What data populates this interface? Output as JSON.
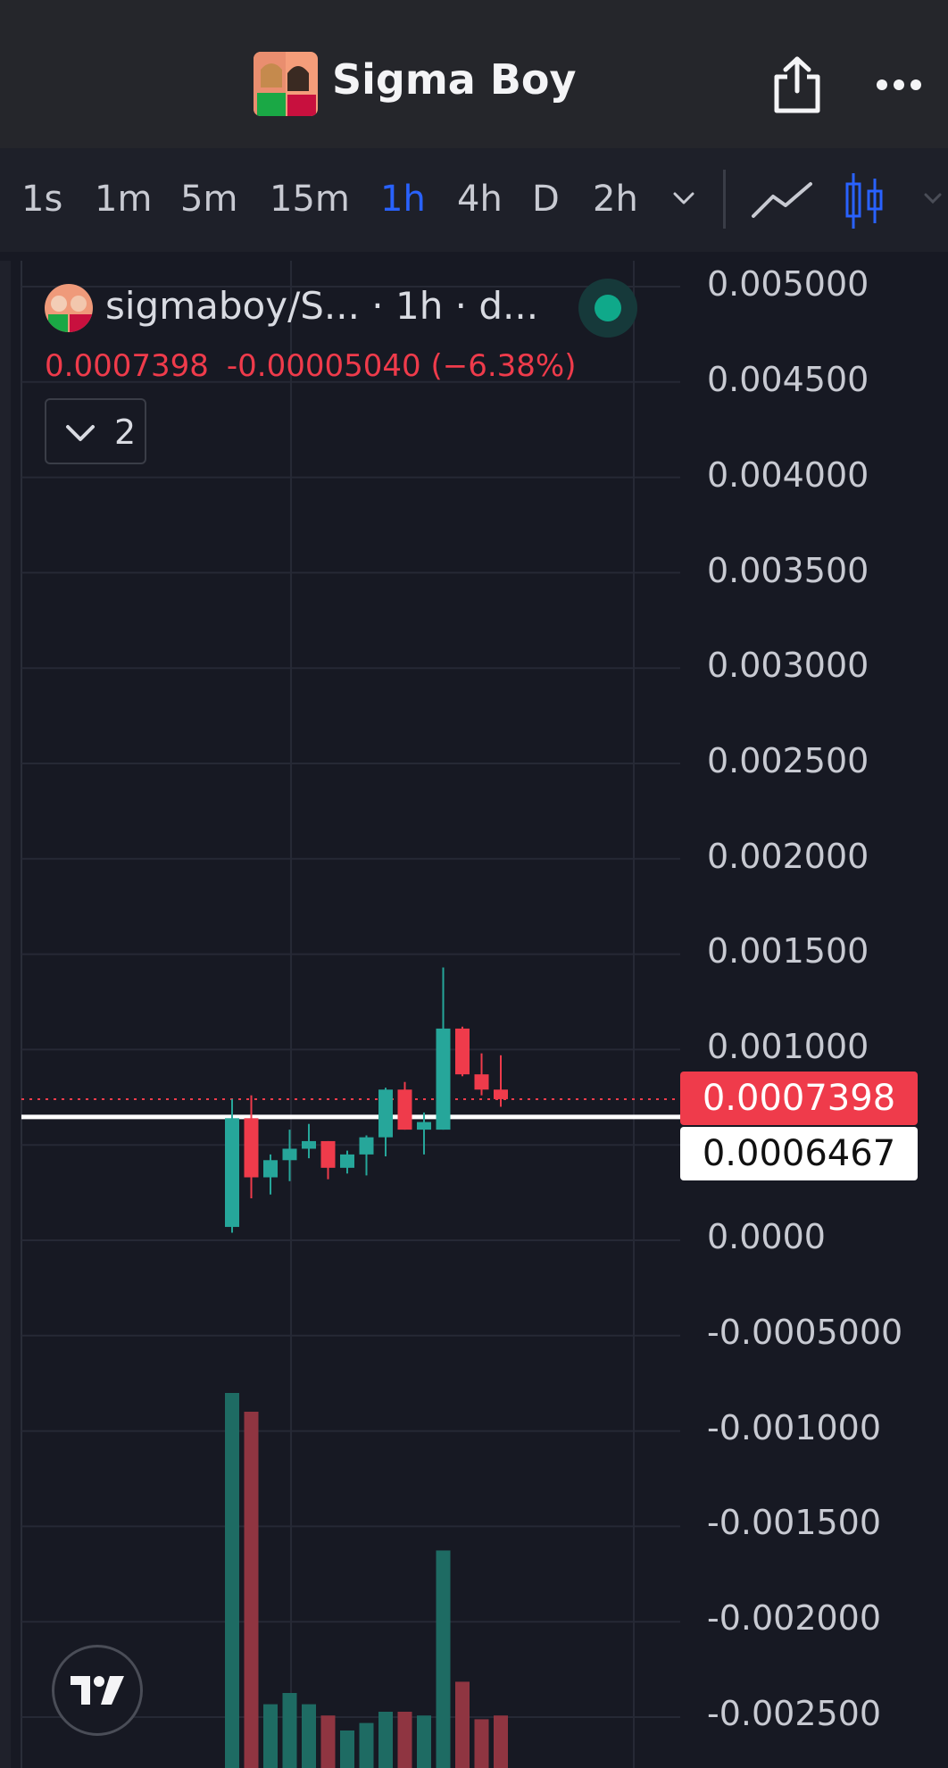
{
  "header": {
    "title": "Sigma Boy",
    "share_icon": "share-icon",
    "more_icon": "more-icon"
  },
  "timeframes": {
    "items": [
      "1s",
      "1m",
      "5m",
      "15m",
      "1h",
      "4h",
      "D",
      "2h"
    ],
    "active": "1h",
    "dropdown_icon": "chevron-down-icon",
    "chart_type_icons": [
      "line-chart-icon",
      "candlestick-icon"
    ]
  },
  "legend": {
    "title": "sigmaboy/S... · 1h · d...",
    "last_price": "0.0007398",
    "change": "-0.00005040 (−6.38%)",
    "collapse_count": "2",
    "status": "live"
  },
  "price_axis": {
    "labels": [
      "0.005000",
      "0.004500",
      "0.004000",
      "0.003500",
      "0.003000",
      "0.002500",
      "0.002000",
      "0.001500",
      "0.001000",
      "0.0000",
      "-0.0005000",
      "-0.001000",
      "-0.001500",
      "-0.002000",
      "-0.002500"
    ],
    "last_price_tag": "0.0007398",
    "crosshair_price_tag": "0.0006467"
  },
  "colors": {
    "up": "#26a69a",
    "down": "#ef3b4b",
    "accent": "#2962ff",
    "background": "#171923"
  },
  "chart_data": {
    "type": "candlestick",
    "interval": "1h",
    "ylim": [
      -0.0027,
      0.0051
    ],
    "candles": [
      {
        "o": 7e-05,
        "h": 0.00074,
        "l": 4e-05,
        "c": 0.00064
      },
      {
        "o": 0.00064,
        "h": 0.00076,
        "l": 0.00022,
        "c": 0.00033
      },
      {
        "o": 0.00033,
        "h": 0.00045,
        "l": 0.00024,
        "c": 0.00042
      },
      {
        "o": 0.00042,
        "h": 0.00058,
        "l": 0.00031,
        "c": 0.00048
      },
      {
        "o": 0.00048,
        "h": 0.00061,
        "l": 0.00043,
        "c": 0.00052
      },
      {
        "o": 0.00052,
        "h": 0.00052,
        "l": 0.00032,
        "c": 0.00038
      },
      {
        "o": 0.00038,
        "h": 0.00047,
        "l": 0.00035,
        "c": 0.00045
      },
      {
        "o": 0.00045,
        "h": 0.00055,
        "l": 0.00034,
        "c": 0.00054
      },
      {
        "o": 0.00054,
        "h": 0.0008,
        "l": 0.00044,
        "c": 0.00079
      },
      {
        "o": 0.00079,
        "h": 0.00083,
        "l": 0.00058,
        "c": 0.00058
      },
      {
        "o": 0.00058,
        "h": 0.00067,
        "l": 0.00045,
        "c": 0.00062
      },
      {
        "o": 0.00058,
        "h": 0.00143,
        "l": 0.00058,
        "c": 0.00111
      },
      {
        "o": 0.00111,
        "h": 0.00112,
        "l": 0.00086,
        "c": 0.00087
      },
      {
        "o": 0.00087,
        "h": 0.00098,
        "l": 0.00076,
        "c": 0.00079
      },
      {
        "o": 0.00079,
        "h": 0.00097,
        "l": 0.0007,
        "c": 0.00074
      }
    ],
    "volume_relative": [
      1.0,
      0.95,
      0.17,
      0.2,
      0.17,
      0.14,
      0.1,
      0.12,
      0.15,
      0.15,
      0.14,
      0.58,
      0.23,
      0.13,
      0.14
    ]
  }
}
